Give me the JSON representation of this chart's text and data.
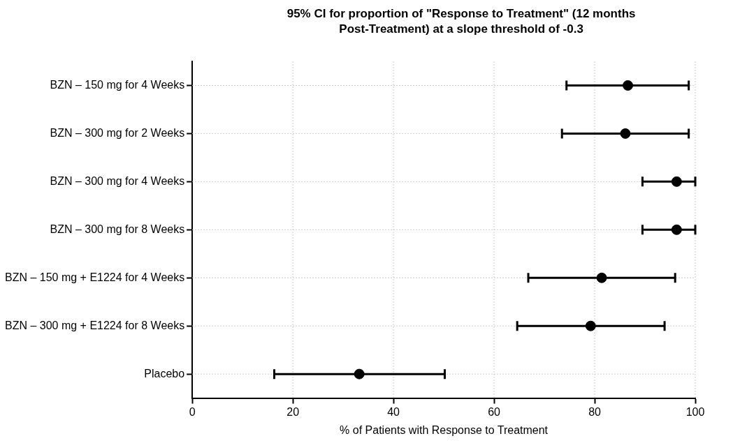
{
  "chart_data": {
    "type": "scatter",
    "title": "95% CI for proportion of \"Response to Treatment\" (12 months\nPost-Treatment) at a slope threshold of -0.3",
    "xlabel": "% of Patients with Response to Treatment",
    "orientation": "horizontal",
    "categories": [
      "BZN – 150 mg for 4 Weeks",
      "BZN – 300 mg for 2 Weeks",
      "BZN – 300 mg for 4 Weeks",
      "BZN – 300 mg for 8 Weeks",
      "BZN – 150 mg + E1224 for 4 Weeks",
      "BZN – 300 mg + E1224 for 8 Weeks",
      "Placebo"
    ],
    "values": [
      86.6,
      86.1,
      96.3,
      96.3,
      81.4,
      79.2,
      33.2
    ],
    "errors": [
      [
        74.4,
        98.7
      ],
      [
        73.5,
        98.7
      ],
      [
        89.5,
        100
      ],
      [
        89.5,
        100
      ],
      [
        66.8,
        96.0
      ],
      [
        64.6,
        93.9
      ],
      [
        16.3,
        50.2
      ]
    ],
    "color": "#000000",
    "marker": "circle",
    "xlim": [
      0,
      100
    ],
    "xticks": [
      0,
      20,
      40,
      60,
      80,
      100
    ],
    "grid": true
  }
}
